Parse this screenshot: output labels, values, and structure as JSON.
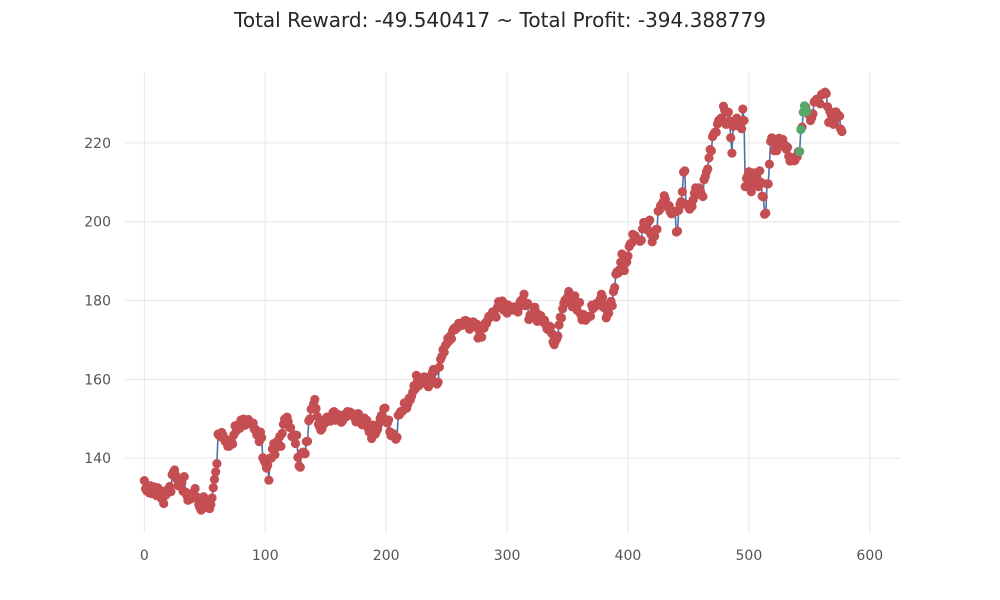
{
  "chart_data": {
    "type": "line",
    "title": "Total Reward: -49.540417 ~ Total Profit: -394.388779",
    "xlabel": "",
    "ylabel": "",
    "xlim": [
      -16,
      625
    ],
    "ylim": [
      121,
      238
    ],
    "x_ticks": [
      0,
      100,
      200,
      300,
      400,
      500,
      600
    ],
    "y_ticks": [
      140,
      160,
      180,
      200,
      220
    ],
    "grid": true,
    "colors": {
      "line": "#4c72b0",
      "short_marker": "#c44e52",
      "long_marker": "#55a868",
      "grid": "#e6e6e6",
      "tick_text": "#555555",
      "title_text": "#262626"
    },
    "series": [
      {
        "values": [
          134.3,
          132.2,
          131.7,
          132.9,
          131.2,
          133.0,
          131.0,
          132.1,
          132.7,
          131.8,
          130.5,
          132.5,
          131.6,
          130.4,
          129.8,
          131.6,
          128.5,
          130.5,
          130.7,
          131.9,
          132.2,
          132.8,
          131.5,
          135.8,
          136.4,
          137.0,
          135.6,
          134.6,
          133.0,
          133.3,
          134.3,
          133.8,
          131.6,
          135.3,
          131.4,
          130.6,
          129.3,
          130.4,
          129.6,
          130.2,
          131.2,
          130.0,
          132.3,
          130.2,
          129.7,
          128.2,
          127.4,
          126.8,
          128.8,
          130.2,
          127.4,
          129.3,
          128.9,
          128.0,
          127.2,
          128.2,
          129.9,
          132.5,
          134.6,
          136.5,
          138.6,
          146.1,
          145.7,
          145.5,
          146.5,
          145.9,
          144.8,
          144.2,
          144.7,
          143.0,
          143.0,
          144.5,
          144.4,
          143.6,
          145.9,
          148.2,
          146.9,
          147.3,
          148.6,
          147.6,
          149.7,
          148.6,
          149.9,
          148.3,
          148.7,
          148.8,
          149.8,
          149.3,
          148.6,
          148.7,
          148.9,
          147.3,
          147.3,
          145.9,
          146.3,
          144.2,
          146.6,
          145.2,
          140.1,
          139.4,
          138.8,
          137.5,
          138.2,
          134.4,
          140.0,
          140.0,
          142.3,
          143.7,
          140.9,
          142.7,
          144.3,
          143.2,
          145.5,
          143.0,
          146.3,
          148.6,
          149.9,
          148.7,
          150.4,
          149.3,
          147.8,
          147.7,
          145.5,
          145.7,
          145.9,
          143.7,
          145.8,
          140.2,
          138.0,
          137.7,
          141.2,
          141.5,
          141.5,
          141.1,
          144.2,
          144.3,
          149.5,
          150.0,
          152.4,
          152.7,
          153.8,
          154.9,
          152.6,
          150.6,
          148.6,
          148.0,
          147.1,
          147.5,
          149.6,
          148.8,
          149.1,
          150.4,
          149.6,
          150.0,
          149.4,
          150.0,
          151.6,
          151.8,
          149.6,
          151.2,
          150.3,
          151.0,
          150.3,
          149.1,
          149.5,
          150.4,
          151.1,
          150.5,
          151.8,
          151.0,
          151.7,
          151.5,
          151.2,
          151.2,
          150.2,
          149.2,
          150.9,
          151.3,
          149.4,
          149.0,
          148.5,
          149.7,
          150.2,
          148.6,
          149.6,
          147.6,
          146.6,
          146.8,
          145.0,
          148.4,
          147.3,
          146.1,
          146.8,
          147.4,
          148.7,
          150.0,
          150.8,
          150.5,
          152.5,
          152.7,
          149.4,
          148.9,
          149.7,
          146.7,
          145.7,
          146.0,
          146.2,
          145.6,
          144.8,
          145.3,
          150.9,
          151.0,
          151.8,
          151.8,
          152.1,
          154.0,
          153.2,
          152.7,
          153.7,
          155.2,
          154.8,
          155.7,
          156.8,
          158.4,
          157.5,
          161.0,
          159.7,
          158.4,
          159.6,
          160.0,
          159.8,
          160.6,
          160.6,
          159.7,
          158.5,
          158.1,
          159.0,
          160.3,
          161.5,
          162.5,
          162.0,
          159.1,
          158.8,
          159.3,
          163.1,
          165.1,
          165.8,
          167.5,
          166.9,
          168.6,
          169.0,
          170.4,
          169.7,
          171.0,
          170.3,
          172.3,
          172.9,
          172.6,
          173.3,
          173.1,
          174.2,
          174.2,
          173.9,
          173.7,
          174.5,
          174.9,
          174.9,
          174.7,
          173.5,
          172.7,
          173.5,
          173.7,
          174.6,
          173.4,
          174.0,
          174.0,
          170.5,
          172.3,
          171.1,
          170.7,
          173.3,
          173.0,
          174.3,
          174.2,
          175.1,
          176.0,
          175.8,
          176.2,
          177.1,
          177.0,
          176.2,
          175.8,
          178.2,
          179.7,
          179.3,
          178.9,
          179.9,
          177.6,
          179.2,
          178.4,
          176.8,
          178.8,
          177.7,
          178.1,
          178.3,
          177.6,
          178.4,
          178.4,
          177.3,
          177.1,
          178.4,
          179.8,
          180.1,
          180.2,
          181.6,
          178.7,
          179.1,
          179.3,
          175.2,
          176.3,
          175.9,
          175.6,
          178.2,
          178.3,
          177.0,
          174.7,
          175.8,
          176.3,
          176.1,
          175.1,
          174.5,
          175.0,
          173.9,
          172.8,
          172.6,
          173.5,
          173.3,
          171.6,
          169.5,
          168.8,
          169.7,
          170.2,
          171.0,
          173.8,
          175.8,
          175.6,
          177.9,
          179.3,
          180.1,
          179.4,
          180.9,
          182.3,
          180.8,
          179.1,
          178.4,
          180.5,
          181.2,
          179.1,
          177.5,
          179.4,
          179.5,
          176.4,
          175.1,
          176.5,
          176.1,
          175.0,
          175.6,
          175.7,
          176.0,
          176.0,
          178.8,
          177.9,
          178.5,
          178.5,
          179.3,
          178.8,
          179.1,
          180.3,
          181.6,
          180.8,
          178.2,
          178.8,
          175.6,
          176.5,
          176.8,
          178.9,
          179.8,
          178.7,
          182.3,
          183.3,
          186.7,
          187.3,
          187.0,
          187.8,
          189.7,
          191.8,
          188.8,
          187.6,
          189.5,
          189.8,
          191.3,
          193.7,
          194.4,
          194.6,
          196.8,
          195.3,
          196.4,
          195.7,
          195.4,
          195.4,
          195.0,
          195.3,
          198.2,
          199.8,
          199.7,
          198.7,
          197.9,
          200.0,
          200.4,
          196.8,
          194.9,
          196.3,
          196.3,
          198.0,
          198.1,
          202.7,
          202.9,
          204.1,
          204.4,
          205.0,
          206.6,
          205.7,
          204.3,
          203.6,
          204.1,
          202.5,
          202.0,
          202.3,
          202.7,
          202.5,
          197.4,
          197.6,
          202.9,
          204.4,
          205.1,
          207.6,
          212.6,
          212.9,
          204.4,
          204.1,
          204.4,
          203.2,
          204.4,
          203.9,
          205.6,
          207.3,
          208.6,
          206.9,
          208.4,
          208.6,
          207.7,
          206.8,
          206.4,
          210.7,
          211.5,
          212.7,
          213.4,
          216.2,
          218.3,
          218.0,
          221.6,
          222.3,
          222.7,
          222.7,
          224.8,
          225.7,
          225.5,
          226.3,
          225.5,
          229.3,
          228.3,
          224.7,
          224.8,
          227.8,
          225.6,
          221.3,
          217.4,
          224.2,
          225.3,
          224.4,
          226.3,
          225.7,
          225.7,
          224.4,
          223.6,
          228.6,
          225.7,
          208.9,
          211.0,
          211.6,
          212.7,
          209.7,
          207.6,
          209.2,
          212.4,
          211.2,
          210.1,
          210.7,
          208.9,
          212.9,
          210.0,
          206.5,
          206.3,
          201.9,
          202.2,
          209.6,
          209.6,
          214.6,
          220.4,
          221.3,
          220.7,
          218.0,
          218.7,
          218.0,
          220.7,
          221.2,
          221.0,
          219.2,
          220.9,
          219.6,
          219.4,
          218.4,
          218.9,
          216.6,
          215.4,
          215.8,
          215.8,
          215.5,
          215.5,
          216.6,
          216.5,
          217.8,
          217.8,
          223.4,
          224.0,
          227.8,
          229.4,
          229.1,
          228.0,
          227.4,
          227.0,
          225.7,
          226.4,
          227.4,
          230.4,
          230.5,
          231.1,
          230.5,
          230.3,
          229.9,
          232.3,
          232.3,
          232.6,
          232.9,
          232.5,
          229.2,
          225.2,
          228.0,
          227.2,
          226.2,
          224.7,
          224.8,
          227.9,
          226.4,
          227.1,
          226.8,
          223.5,
          222.9
        ]
      }
    ],
    "long_positions": [
      542,
      543,
      545,
      546,
      548
    ]
  }
}
